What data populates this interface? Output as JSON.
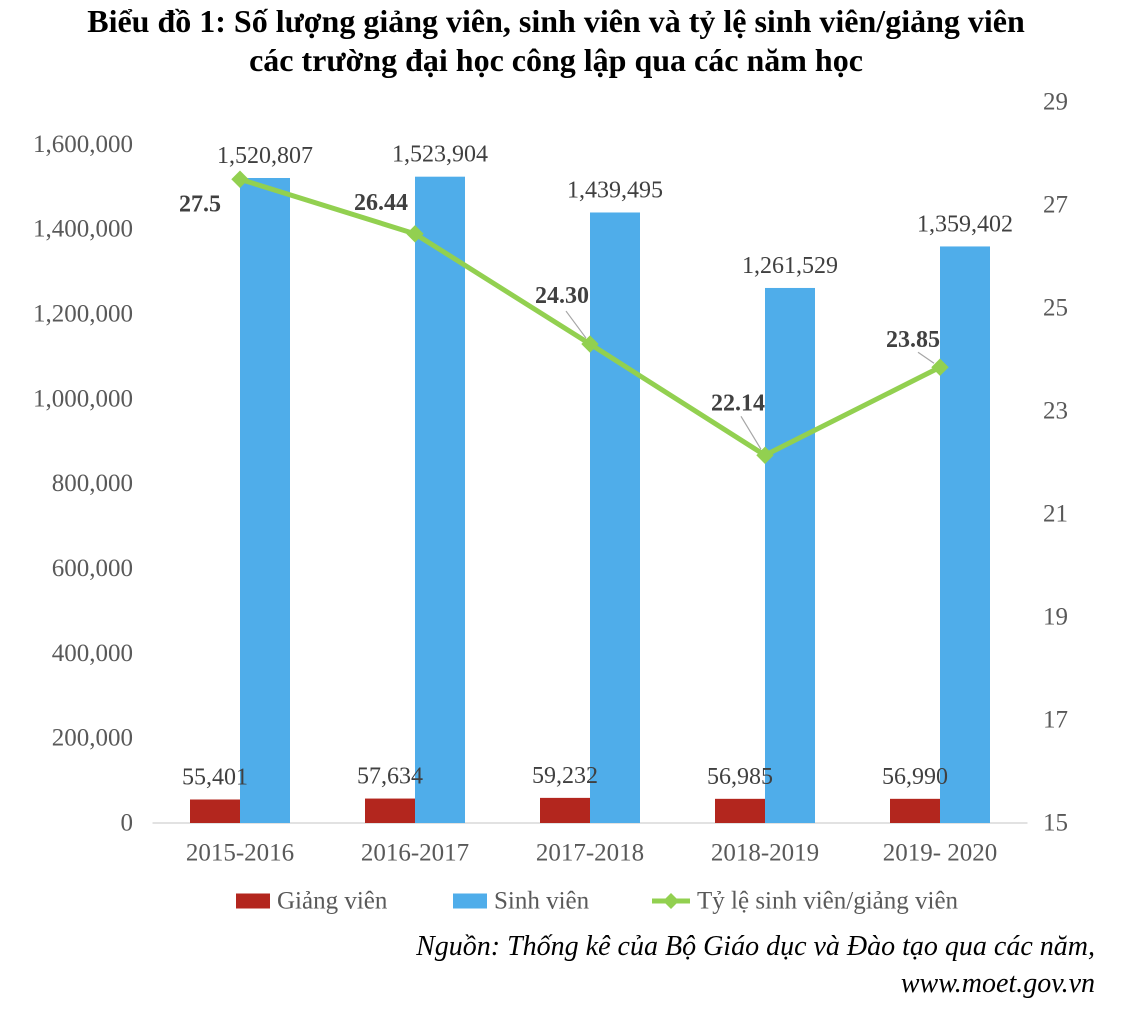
{
  "chart_data": {
    "type": "bar",
    "title_lines": [
      "Biểu đồ 1: Số lượng giảng viên, sinh viên và tỷ lệ sinh viên/giảng viên",
      "các trường đại học công lập qua các năm học"
    ],
    "categories": [
      "2015-2016",
      "2016-2017",
      "2017-2018",
      "2018-2019",
      "2019- 2020"
    ],
    "series": [
      {
        "name": "Giảng viên",
        "type": "bar",
        "axis": "left",
        "color": "#B3261E",
        "values": [
          55401,
          57634,
          59232,
          56985,
          56990
        ],
        "labels": [
          "55,401",
          "57,634",
          "59,232",
          "56,985",
          "56,990"
        ]
      },
      {
        "name": "Sinh viên",
        "type": "bar",
        "axis": "left",
        "color": "#4FADEA",
        "values": [
          1520807,
          1523904,
          1439495,
          1261529,
          1359402
        ],
        "labels": [
          "1,520,807",
          "1,523,904",
          "1,439,495",
          "1,261,529",
          "1,359,402"
        ]
      },
      {
        "name": "Tỷ lệ sinh viên/giảng viên",
        "type": "line",
        "marker": "diamond",
        "axis": "right",
        "color": "#92D050",
        "values": [
          27.5,
          26.44,
          24.3,
          22.14,
          23.85
        ],
        "labels": [
          "27.5",
          "26.44",
          "24.30",
          "22.14",
          "23.85"
        ]
      }
    ],
    "y_axis": {
      "min": 0,
      "max": 1700000,
      "ticks": [
        "0",
        "200,000",
        "400,000",
        "600,000",
        "800,000",
        "1,000,000",
        "1,200,000",
        "1,400,000",
        "1,600,000"
      ]
    },
    "y2_axis": {
      "min": 15,
      "max": 29,
      "ticks": [
        "15",
        "17",
        "19",
        "21",
        "23",
        "25",
        "27",
        "29"
      ]
    },
    "grid": false,
    "legend": "bottom"
  },
  "source": {
    "lines": [
      "Nguồn: Thống kê của Bộ Giáo dục và Đào tạo qua các năm,",
      "www.moet.gov.vn"
    ]
  }
}
